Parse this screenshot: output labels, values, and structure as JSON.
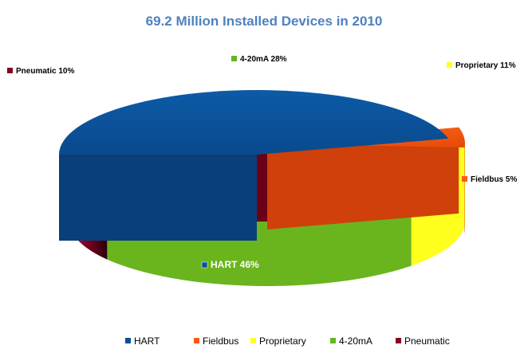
{
  "chart_data": {
    "type": "pie",
    "title": "69.2 Million Installed Devices in 2010",
    "categories": [
      "HART",
      "Fieldbus",
      "Proprietary",
      "4-20mA",
      "Pneumatic"
    ],
    "values": [
      46,
      5,
      11,
      28,
      10
    ],
    "unit": "%",
    "data_labels": [
      "HART 46%",
      "Fieldbus 5%",
      "Proprietary 11%",
      "4-20mA 28%",
      "Pneumatic 10%"
    ],
    "colors": [
      "#0b4f97",
      "#ff5a12",
      "#ffff1e",
      "#6ab51e",
      "#8a0022"
    ],
    "legend_position": "bottom",
    "exploded": [
      "HART",
      "Fieldbus"
    ],
    "style": "3d"
  }
}
